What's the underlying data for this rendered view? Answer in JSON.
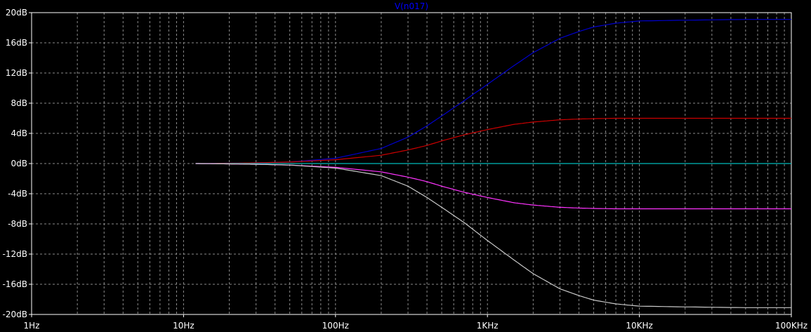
{
  "chart_data": {
    "type": "line",
    "title": "V(n017)",
    "x_scale": "log",
    "xlim": [
      1,
      100000
    ],
    "ylim": [
      -20,
      20
    ],
    "grid": true,
    "x_ticks": [
      {
        "value": 1,
        "label": "1Hz"
      },
      {
        "value": 10,
        "label": "10Hz"
      },
      {
        "value": 100,
        "label": "100Hz"
      },
      {
        "value": 1000,
        "label": "1KHz"
      },
      {
        "value": 10000,
        "label": "10KHz"
      },
      {
        "value": 100000,
        "label": "100KHz"
      }
    ],
    "y_ticks": [
      {
        "value": 20,
        "label": "20dB"
      },
      {
        "value": 16,
        "label": "16dB"
      },
      {
        "value": 12,
        "label": "12dB"
      },
      {
        "value": 8,
        "label": "8dB"
      },
      {
        "value": 4,
        "label": "4dB"
      },
      {
        "value": 0,
        "label": "0dB"
      },
      {
        "value": -4,
        "label": "-4dB"
      },
      {
        "value": -8,
        "label": "-8dB"
      },
      {
        "value": -12,
        "label": "-12dB"
      },
      {
        "value": -16,
        "label": "-16dB"
      },
      {
        "value": -20,
        "label": "-20dB"
      }
    ],
    "series": [
      {
        "color": "#0000cc",
        "x": [
          12,
          20,
          30,
          50,
          100,
          200,
          300,
          400,
          500,
          700,
          1000,
          1500,
          2000,
          3000,
          4000,
          5000,
          7000,
          10000,
          20000,
          50000,
          100000
        ],
        "y": [
          0,
          0.05,
          0.1,
          0.2,
          0.7,
          2.0,
          3.5,
          5.0,
          6.3,
          8.3,
          10.5,
          13.0,
          14.7,
          16.6,
          17.5,
          18.1,
          18.6,
          18.9,
          19.0,
          19.1,
          19.1
        ]
      },
      {
        "color": "#cc0000",
        "x": [
          12,
          20,
          30,
          50,
          100,
          200,
          300,
          400,
          500,
          700,
          1000,
          1500,
          2000,
          3000,
          4000,
          5000,
          7000,
          10000,
          20000,
          50000,
          100000
        ],
        "y": [
          0,
          0.05,
          0.1,
          0.2,
          0.5,
          1.1,
          1.8,
          2.4,
          3.0,
          3.8,
          4.5,
          5.2,
          5.5,
          5.8,
          5.9,
          5.95,
          6.0,
          6.0,
          6.0,
          6.0,
          6.0
        ]
      },
      {
        "color": "#00bbbb",
        "x": [
          12,
          100000
        ],
        "y": [
          0,
          0
        ]
      },
      {
        "color": "#ff33ff",
        "x": [
          12,
          20,
          30,
          50,
          100,
          200,
          300,
          400,
          500,
          700,
          1000,
          1500,
          2000,
          3000,
          4000,
          5000,
          7000,
          10000,
          20000,
          50000,
          100000
        ],
        "y": [
          0,
          -0.05,
          -0.1,
          -0.2,
          -0.5,
          -1.1,
          -1.8,
          -2.4,
          -3.0,
          -3.8,
          -4.5,
          -5.2,
          -5.5,
          -5.8,
          -5.9,
          -5.95,
          -6.0,
          -6.0,
          -6.0,
          -6.0,
          -6.0
        ]
      },
      {
        "color": "#c8c8c8",
        "x": [
          12,
          20,
          30,
          50,
          100,
          200,
          300,
          400,
          500,
          700,
          1000,
          1500,
          2000,
          3000,
          4000,
          5000,
          7000,
          10000,
          20000,
          50000,
          100000
        ],
        "y": [
          0,
          -0.05,
          -0.1,
          -0.2,
          -0.6,
          -1.6,
          -3.0,
          -4.5,
          -5.8,
          -7.8,
          -10.2,
          -12.8,
          -14.6,
          -16.6,
          -17.5,
          -18.1,
          -18.6,
          -18.9,
          -19.0,
          -19.1,
          -19.1
        ]
      }
    ]
  }
}
